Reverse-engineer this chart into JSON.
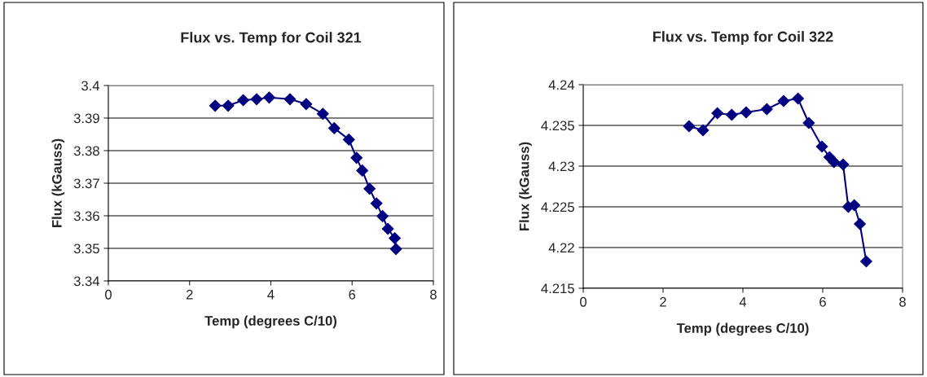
{
  "chart_data": [
    {
      "type": "line",
      "title": "Flux vs. Temp for Coil 321",
      "xlabel": "Temp (degrees C/10)",
      "ylabel": "Flux (kGauss)",
      "xlim": [
        0,
        8
      ],
      "xticks": [
        0,
        2,
        4,
        6,
        8
      ],
      "ylim": [
        3.34,
        3.4
      ],
      "yticks": [
        3.34,
        3.35,
        3.36,
        3.37,
        3.38,
        3.39,
        3.4
      ],
      "grid": "y",
      "marker": "diamond",
      "line_style": "solid",
      "legend": false,
      "series": [
        {
          "color": "#000080",
          "x": [
            2.63,
            2.95,
            3.32,
            3.65,
            3.96,
            4.47,
            4.87,
            5.28,
            5.56,
            5.92,
            6.11,
            6.25,
            6.43,
            6.6,
            6.75,
            6.88,
            7.05,
            7.08
          ],
          "values": [
            3.3938,
            3.3938,
            3.3955,
            3.3958,
            3.3963,
            3.3958,
            3.3943,
            3.3913,
            3.3869,
            3.3834,
            3.3778,
            3.3739,
            3.3683,
            3.3638,
            3.3599,
            3.356,
            3.3531,
            3.3498
          ]
        }
      ]
    },
    {
      "type": "line",
      "title": "Flux vs. Temp for Coil 322",
      "xlabel": "Temp (degrees C/10)",
      "ylabel": "Flux (kGauss)",
      "xlim": [
        0,
        8
      ],
      "xticks": [
        0,
        2,
        4,
        6,
        8
      ],
      "ylim": [
        4.215,
        4.24
      ],
      "yticks": [
        4.215,
        4.22,
        4.225,
        4.23,
        4.235,
        4.24
      ],
      "grid": "y",
      "marker": "diamond",
      "line_style": "solid",
      "legend": false,
      "series": [
        {
          "color": "#000080",
          "x": [
            2.65,
            3.0,
            3.36,
            3.72,
            4.08,
            4.6,
            5.02,
            5.38,
            5.65,
            5.98,
            6.17,
            6.28,
            6.51,
            6.64,
            6.79,
            6.93,
            7.09
          ],
          "values": [
            4.2349,
            4.2344,
            4.2365,
            4.2363,
            4.2366,
            4.237,
            4.238,
            4.2383,
            4.2353,
            4.2324,
            4.2311,
            4.2305,
            4.2302,
            4.225,
            4.2252,
            4.2229,
            4.2183
          ]
        }
      ]
    }
  ]
}
